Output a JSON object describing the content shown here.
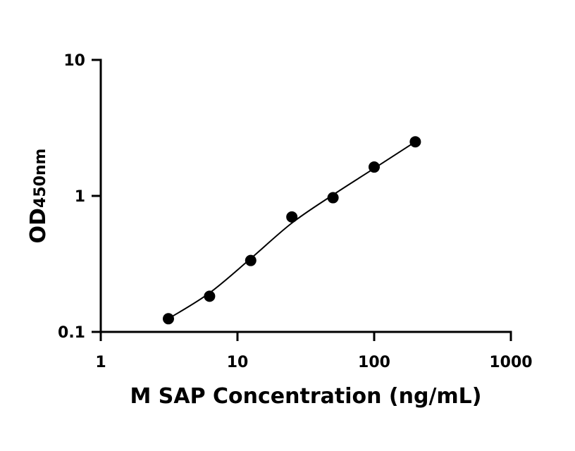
{
  "chart_data": {
    "type": "scatter",
    "x_scale": "log",
    "y_scale": "log",
    "xlim": [
      1,
      1000
    ],
    "ylim": [
      0.1,
      10
    ],
    "x_ticks": [
      1,
      10,
      100,
      1000
    ],
    "x_tick_labels": [
      "1",
      "10",
      "100",
      "1000"
    ],
    "y_ticks": [
      0.1,
      1,
      10
    ],
    "y_tick_labels": [
      "0.1",
      "1",
      "10"
    ],
    "xlabel": "M SAP Concentration (ng/mL)",
    "ylabel": "OD",
    "ylabel_subscript": "450nm",
    "grid": false,
    "legend": "none",
    "series": [
      {
        "x": [
          3.125,
          6.25,
          12.5,
          25,
          50,
          100,
          200
        ],
        "y": [
          0.125,
          0.183,
          0.335,
          0.7,
          0.97,
          1.63,
          2.5
        ],
        "color": "#000000",
        "fit_line": true
      }
    ]
  }
}
